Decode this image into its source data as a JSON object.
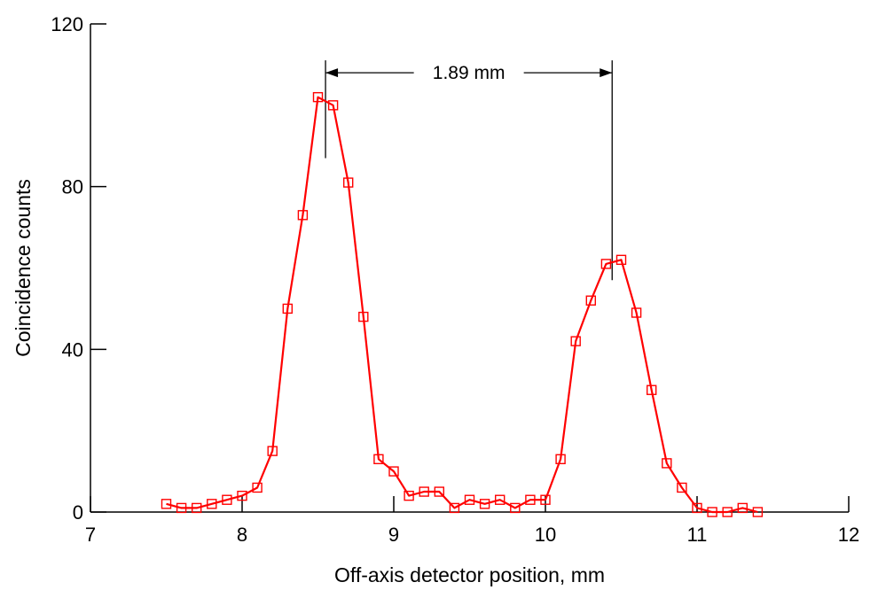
{
  "chart_data": {
    "type": "line",
    "title": "",
    "xlabel": "Off-axis detector position, mm",
    "ylabel": "Coincidence counts",
    "xlim": [
      7,
      12
    ],
    "ylim": [
      0,
      120
    ],
    "x_ticks": [
      7,
      8,
      9,
      10,
      11,
      12
    ],
    "y_ticks": [
      0,
      40,
      80,
      120
    ],
    "grid": false,
    "legend": "none",
    "marker": "square",
    "color": "#ff0000",
    "series": [
      {
        "x": [
          7.5,
          7.6,
          7.7,
          7.8,
          7.9,
          8.0,
          8.1,
          8.2,
          8.3,
          8.4,
          8.5,
          8.6,
          8.7,
          8.8,
          8.9,
          9.0,
          9.1,
          9.2,
          9.3,
          9.4,
          9.5,
          9.6,
          9.7,
          9.8,
          9.9,
          10.0,
          10.1,
          10.2,
          10.3,
          10.4,
          10.5,
          10.6,
          10.7,
          10.8,
          10.9,
          11.0,
          11.1,
          11.2,
          11.3,
          11.4
        ],
        "y": [
          2,
          1,
          1,
          2,
          3,
          4,
          6,
          15,
          50,
          73,
          102,
          100,
          81,
          48,
          13,
          10,
          4,
          5,
          5,
          1,
          3,
          2,
          3,
          1,
          3,
          3,
          13,
          42,
          52,
          61,
          62,
          49,
          30,
          12,
          6,
          1,
          0,
          0,
          1,
          0
        ]
      }
    ],
    "annotation": {
      "label": "1.89 mm",
      "x_start": 8.55,
      "x_end": 10.44,
      "y": 108
    }
  }
}
